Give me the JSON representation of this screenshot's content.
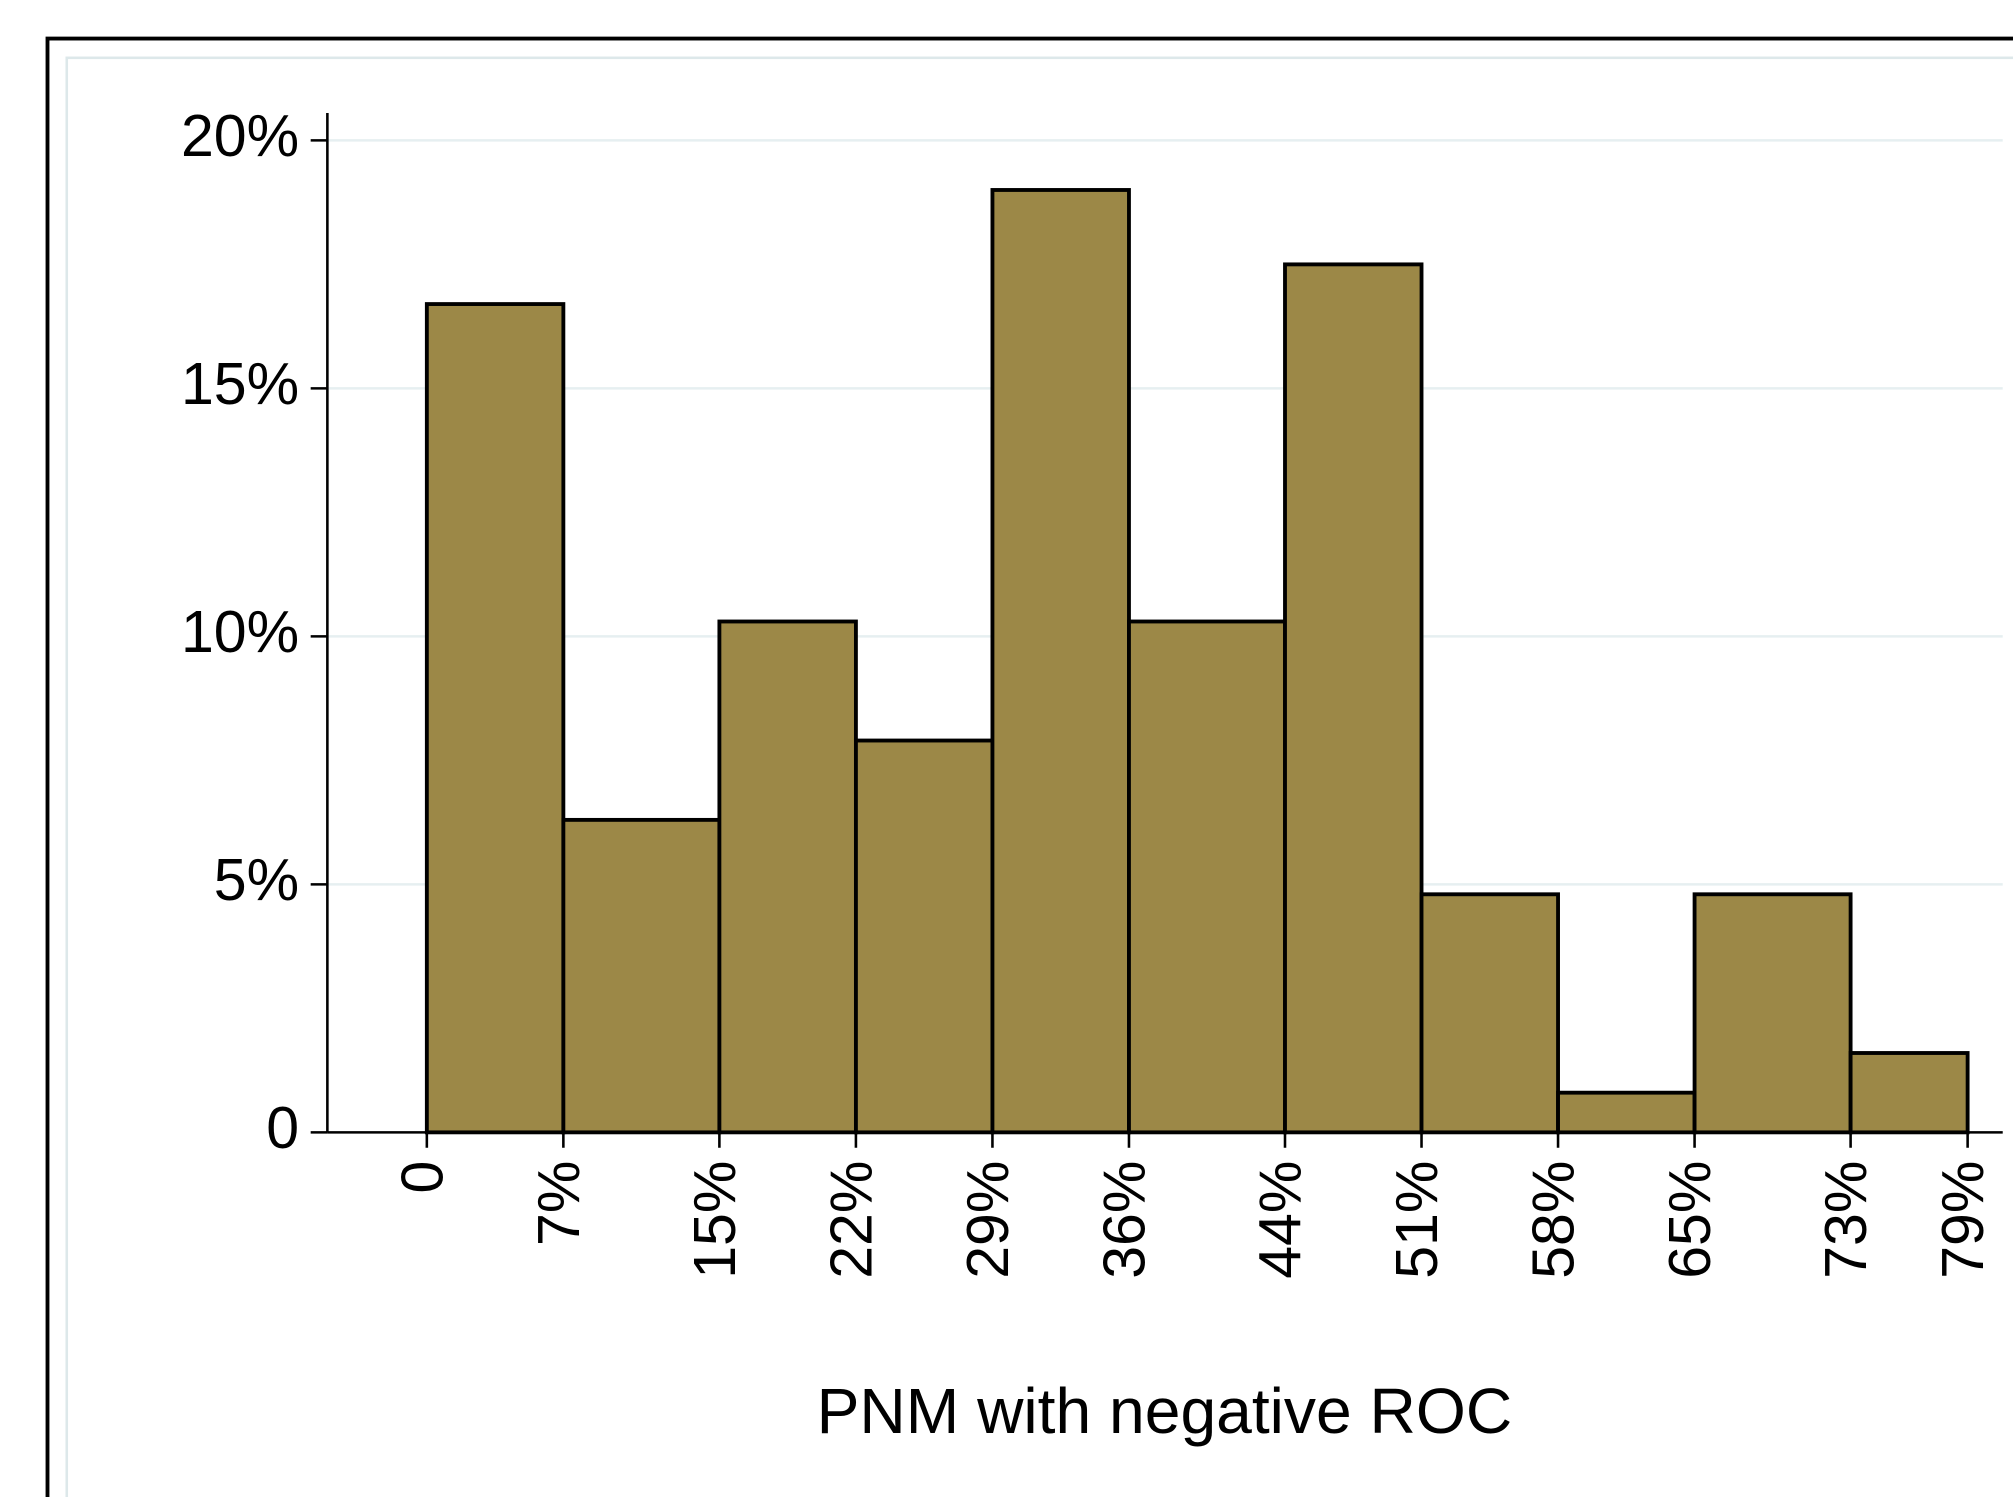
{
  "chart_data": {
    "type": "histogram",
    "x_label": "PNM with negative ROC",
    "bins": [
      0,
      7,
      15,
      22,
      29,
      36,
      44,
      51,
      58,
      65,
      73,
      79
    ],
    "values": [
      16.7,
      6.3,
      10.3,
      7.9,
      19.0,
      10.3,
      17.5,
      4.8,
      0.8,
      4.8,
      1.6
    ],
    "color": "#9c8847",
    "xlim": [
      -5.1,
      80.8
    ],
    "ylim": [
      0,
      20.5
    ],
    "xticks": [
      0,
      {
        "value": 7,
        "label": "7%"
      },
      {
        "value": 15,
        "label": "15%"
      },
      {
        "value": 22,
        "label": "22%"
      },
      {
        "value": 29,
        "label": "29%"
      },
      {
        "value": 36,
        "label": "36%"
      },
      {
        "value": 44,
        "label": "44%"
      },
      {
        "value": 51,
        "label": "51%"
      },
      {
        "value": 58,
        "label": "58%"
      },
      {
        "value": 65,
        "label": "65%"
      },
      {
        "value": 73,
        "label": "73%"
      },
      {
        "value": 79,
        "label": "79%"
      }
    ],
    "yticks": [
      0,
      {
        "value": 5,
        "label": "5%"
      },
      {
        "value": 10,
        "label": "10%"
      },
      {
        "value": 15,
        "label": "15%"
      },
      {
        "value": 20,
        "label": "20%"
      }
    ],
    "grid": true
  }
}
